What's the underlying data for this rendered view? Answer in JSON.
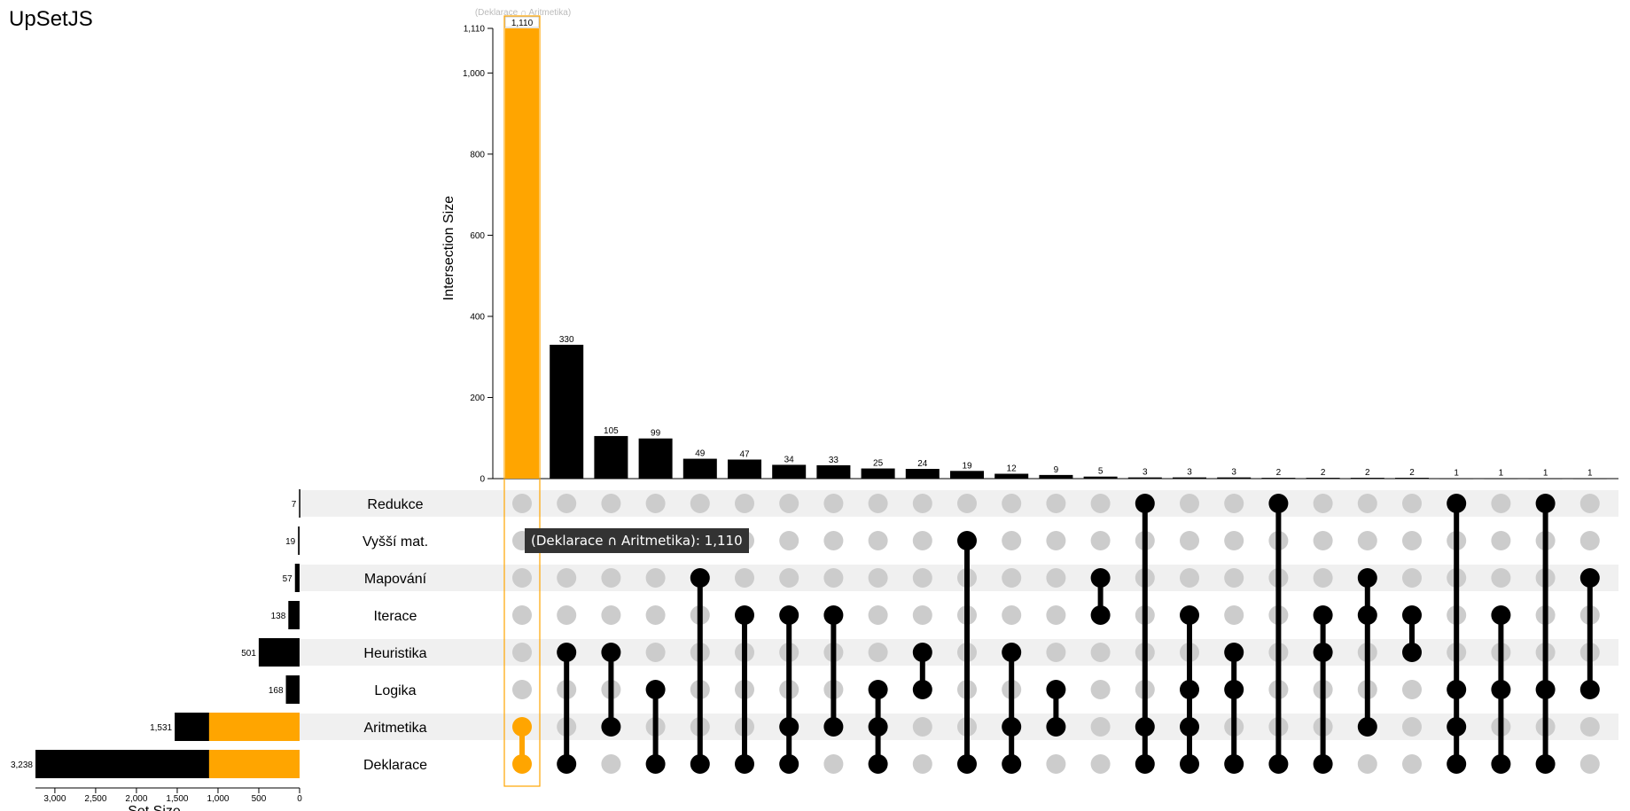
{
  "app_title": "UpSetJS",
  "tooltip": "(Deklarace ∩ Aritmetika): 1,110",
  "hover_label": "(Deklarace ∩ Aritmetika)",
  "colors": {
    "bar": "#000000",
    "highlight": "#ffa500",
    "inactive_dot": "#cccccc",
    "stripe": "#f0f0f0"
  },
  "chart_data": {
    "type": "upset",
    "title": "UpSetJS",
    "ylabel": "Intersection Size",
    "xlabel": "Set Size",
    "intersection_axis": {
      "ylim": [
        0,
        1110
      ],
      "ticks": [
        0,
        200,
        400,
        600,
        800,
        1000,
        1110
      ],
      "tick_labels": [
        "0",
        "200",
        "400",
        "600",
        "800",
        "1,000",
        "1,110"
      ]
    },
    "set_axis": {
      "xlim": [
        3238,
        0
      ],
      "ticks": [
        3000,
        2500,
        2000,
        1500,
        1000,
        500,
        0
      ],
      "tick_labels": [
        "3,000",
        "2,500",
        "2,000",
        "1,500",
        "1,000",
        "500",
        "0"
      ]
    },
    "sets": [
      {
        "name": "Redukce",
        "size": 7,
        "label": "7"
      },
      {
        "name": "Vyšší mat.",
        "size": 19,
        "label": "19"
      },
      {
        "name": "Mapování",
        "size": 57,
        "label": "57"
      },
      {
        "name": "Iterace",
        "size": 138,
        "label": "138"
      },
      {
        "name": "Heuristika",
        "size": 501,
        "label": "501"
      },
      {
        "name": "Logika",
        "size": 168,
        "label": "168"
      },
      {
        "name": "Aritmetika",
        "size": 1531,
        "label": "1,531",
        "highlight": 1110
      },
      {
        "name": "Deklarace",
        "size": 3238,
        "label": "3,238",
        "highlight": 1110
      }
    ],
    "intersections": [
      {
        "sets": [
          "Aritmetika",
          "Deklarace"
        ],
        "value": 1110,
        "label": "1,110",
        "selected": true
      },
      {
        "sets": [
          "Heuristika",
          "Deklarace"
        ],
        "value": 330,
        "label": "330"
      },
      {
        "sets": [
          "Heuristika",
          "Aritmetika"
        ],
        "value": 105,
        "label": "105"
      },
      {
        "sets": [
          "Logika",
          "Deklarace"
        ],
        "value": 99,
        "label": "99"
      },
      {
        "sets": [
          "Mapování",
          "Deklarace"
        ],
        "value": 49,
        "label": "49"
      },
      {
        "sets": [
          "Iterace",
          "Deklarace"
        ],
        "value": 47,
        "label": "47"
      },
      {
        "sets": [
          "Iterace",
          "Aritmetika",
          "Deklarace"
        ],
        "value": 34,
        "label": "34"
      },
      {
        "sets": [
          "Iterace",
          "Aritmetika"
        ],
        "value": 33,
        "label": "33"
      },
      {
        "sets": [
          "Logika",
          "Aritmetika",
          "Deklarace"
        ],
        "value": 25,
        "label": "25"
      },
      {
        "sets": [
          "Heuristika",
          "Logika"
        ],
        "value": 24,
        "label": "24"
      },
      {
        "sets": [
          "Vyšší mat.",
          "Deklarace"
        ],
        "value": 19,
        "label": "19"
      },
      {
        "sets": [
          "Heuristika",
          "Aritmetika",
          "Deklarace"
        ],
        "value": 12,
        "label": "12"
      },
      {
        "sets": [
          "Logika",
          "Aritmetika"
        ],
        "value": 9,
        "label": "9"
      },
      {
        "sets": [
          "Mapování",
          "Iterace"
        ],
        "value": 5,
        "label": "5"
      },
      {
        "sets": [
          "Redukce",
          "Aritmetika",
          "Deklarace"
        ],
        "value": 3,
        "label": "3"
      },
      {
        "sets": [
          "Iterace",
          "Logika",
          "Aritmetika",
          "Deklarace"
        ],
        "value": 3,
        "label": "3"
      },
      {
        "sets": [
          "Heuristika",
          "Logika",
          "Deklarace"
        ],
        "value": 3,
        "label": "3"
      },
      {
        "sets": [
          "Redukce",
          "Deklarace"
        ],
        "value": 2,
        "label": "2"
      },
      {
        "sets": [
          "Iterace",
          "Heuristika",
          "Deklarace"
        ],
        "value": 2,
        "label": "2"
      },
      {
        "sets": [
          "Mapování",
          "Iterace",
          "Aritmetika"
        ],
        "value": 2,
        "label": "2"
      },
      {
        "sets": [
          "Iterace",
          "Heuristika"
        ],
        "value": 2,
        "label": "2"
      },
      {
        "sets": [
          "Redukce",
          "Logika",
          "Aritmetika",
          "Deklarace"
        ],
        "value": 1,
        "label": "1"
      },
      {
        "sets": [
          "Iterace",
          "Logika",
          "Deklarace"
        ],
        "value": 1,
        "label": "1"
      },
      {
        "sets": [
          "Redukce",
          "Logika",
          "Deklarace"
        ],
        "value": 1,
        "label": "1"
      },
      {
        "sets": [
          "Mapování",
          "Logika"
        ],
        "value": 1,
        "label": "1"
      }
    ]
  }
}
